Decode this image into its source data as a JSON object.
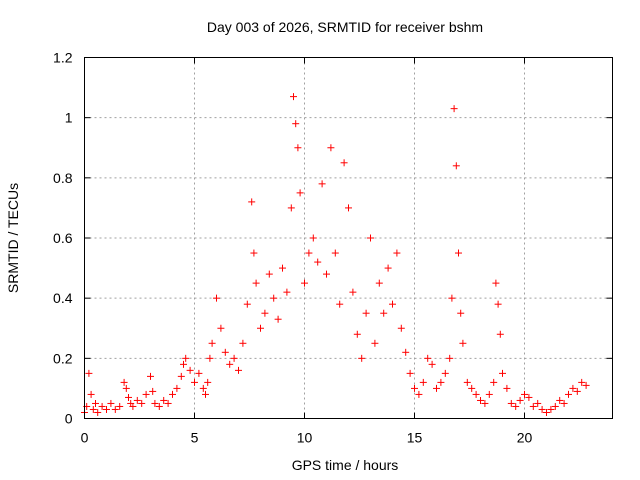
{
  "chart_data": {
    "type": "scatter",
    "title": "Day 003 of 2026, SRMTID for receiver bshm",
    "xlabel": "GPS time / hours",
    "ylabel": "SRMTID / TECUs",
    "xlim": [
      0,
      24
    ],
    "ylim": [
      0,
      1.2
    ],
    "xticks": [
      0,
      5,
      10,
      15,
      20
    ],
    "xtick_labels": [
      "0",
      "5",
      "10",
      "15",
      "20"
    ],
    "yticks": [
      0,
      0.2,
      0.4,
      0.6,
      0.8,
      1.0,
      1.2
    ],
    "ytick_labels": [
      "0",
      "0.2",
      "0.4",
      "0.6",
      "0.8",
      "1",
      "1.2"
    ],
    "grid": true,
    "marker": "+",
    "series": [
      {
        "name": "SRMTID",
        "color": "#ff0000",
        "x": [
          0.0,
          0.1,
          0.2,
          0.3,
          0.4,
          0.5,
          0.6,
          0.8,
          1.0,
          1.2,
          1.4,
          1.6,
          1.8,
          1.9,
          2.0,
          2.1,
          2.2,
          2.4,
          2.6,
          2.8,
          3.0,
          3.1,
          3.2,
          3.4,
          3.6,
          3.8,
          4.0,
          4.2,
          4.4,
          4.5,
          4.6,
          4.8,
          5.0,
          5.2,
          5.4,
          5.5,
          5.6,
          5.7,
          5.8,
          6.0,
          6.2,
          6.4,
          6.6,
          6.8,
          7.0,
          7.2,
          7.4,
          7.6,
          7.7,
          7.8,
          8.0,
          8.2,
          8.4,
          8.6,
          8.8,
          9.0,
          9.2,
          9.4,
          9.5,
          9.6,
          9.7,
          9.8,
          10.0,
          10.2,
          10.4,
          10.6,
          10.8,
          11.0,
          11.2,
          11.4,
          11.6,
          11.8,
          12.0,
          12.2,
          12.4,
          12.6,
          12.8,
          13.0,
          13.2,
          13.4,
          13.6,
          13.8,
          14.0,
          14.2,
          14.4,
          14.6,
          14.8,
          15.0,
          15.2,
          15.4,
          15.6,
          15.8,
          16.0,
          16.2,
          16.4,
          16.6,
          16.7,
          16.8,
          16.9,
          17.0,
          17.1,
          17.2,
          17.4,
          17.6,
          17.8,
          18.0,
          18.2,
          18.4,
          18.6,
          18.7,
          18.8,
          18.9,
          19.0,
          19.2,
          19.4,
          19.6,
          19.8,
          20.0,
          20.2,
          20.4,
          20.6,
          20.8,
          21.0,
          21.2,
          21.4,
          21.6,
          21.8,
          22.0,
          22.2,
          22.4,
          22.6,
          22.8
        ],
        "y": [
          0.02,
          0.04,
          0.15,
          0.08,
          0.03,
          0.05,
          0.02,
          0.04,
          0.03,
          0.05,
          0.03,
          0.04,
          0.12,
          0.1,
          0.07,
          0.05,
          0.04,
          0.06,
          0.05,
          0.08,
          0.14,
          0.09,
          0.05,
          0.04,
          0.06,
          0.05,
          0.08,
          0.1,
          0.14,
          0.18,
          0.2,
          0.16,
          0.12,
          0.15,
          0.1,
          0.08,
          0.12,
          0.2,
          0.25,
          0.4,
          0.3,
          0.22,
          0.18,
          0.2,
          0.16,
          0.25,
          0.38,
          0.72,
          0.55,
          0.45,
          0.3,
          0.35,
          0.48,
          0.4,
          0.33,
          0.5,
          0.42,
          0.7,
          1.07,
          0.98,
          0.9,
          0.75,
          0.45,
          0.55,
          0.6,
          0.52,
          0.78,
          0.48,
          0.9,
          0.55,
          0.38,
          0.85,
          0.7,
          0.42,
          0.28,
          0.2,
          0.35,
          0.6,
          0.25,
          0.45,
          0.35,
          0.5,
          0.38,
          0.55,
          0.3,
          0.22,
          0.15,
          0.1,
          0.08,
          0.12,
          0.2,
          0.18,
          0.1,
          0.12,
          0.15,
          0.2,
          0.4,
          1.03,
          0.84,
          0.55,
          0.35,
          0.25,
          0.12,
          0.1,
          0.08,
          0.06,
          0.05,
          0.08,
          0.12,
          0.45,
          0.38,
          0.28,
          0.15,
          0.1,
          0.05,
          0.04,
          0.06,
          0.08,
          0.07,
          0.04,
          0.05,
          0.03,
          0.02,
          0.03,
          0.04,
          0.06,
          0.05,
          0.08,
          0.1,
          0.09,
          0.12,
          0.11
        ]
      }
    ]
  }
}
